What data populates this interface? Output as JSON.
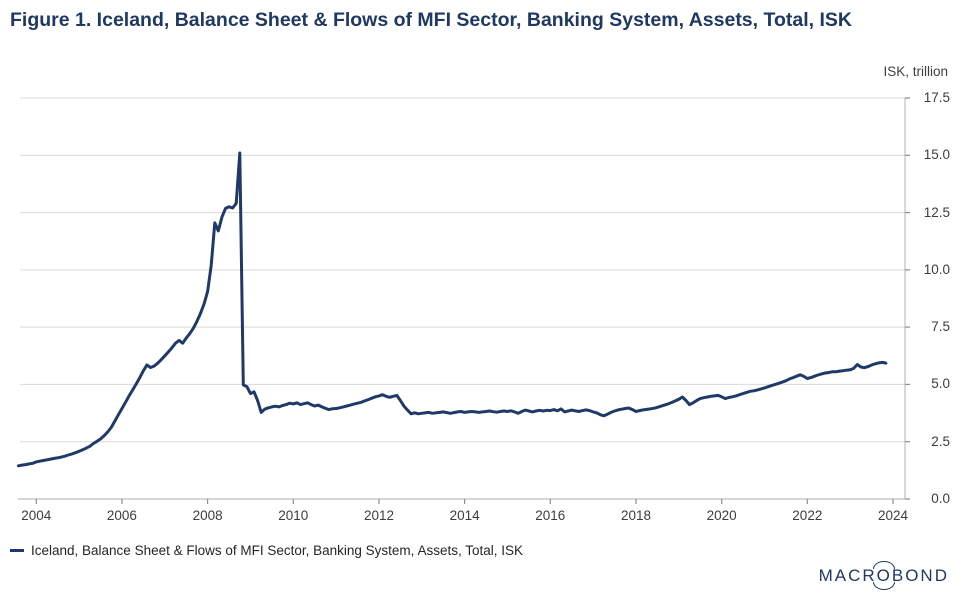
{
  "figure": {
    "title": "Figure 1. Iceland, Balance Sheet & Flows of MFI Sector, Banking System, Assets, Total, ISK",
    "unit_label": "ISK, trillion"
  },
  "legend": {
    "items": [
      {
        "label": "Iceland, Balance Sheet & Flows of MFI Sector, Banking System, Assets, Total, ISK",
        "marker": "line-dash",
        "color": "#1f3a68"
      }
    ]
  },
  "branding": {
    "logo_part1": "MACR",
    "logo_o": "O",
    "logo_part2": "BOND"
  },
  "colors": {
    "accent_navy": "#1f3864",
    "series_line": "#1f3a68",
    "gridline": "#d9d9d9",
    "axis_line": "#bdbdbd",
    "tick_mark": "#8c8c8c",
    "tick_text": "#3d3d3d"
  },
  "chart_data": {
    "type": "line",
    "title": "Figure 1. Iceland, Balance Sheet & Flows of MFI Sector, Banking System, Assets, Total, ISK",
    "ylabel": "ISK, trillion",
    "grid": true,
    "legend_position": "bottom-left",
    "ylim": [
      0,
      17.5
    ],
    "y_tick_labels": [
      "0.0",
      "2.5",
      "5.0",
      "7.5",
      "10.0",
      "12.5",
      "15.0",
      "17.5"
    ],
    "y_tick_values": [
      0,
      2.5,
      5,
      7.5,
      10,
      12.5,
      15,
      17.5
    ],
    "x_tick_years": [
      2004,
      2006,
      2008,
      2010,
      2012,
      2014,
      2016,
      2018,
      2020,
      2022,
      2024
    ],
    "x_range": [
      2003.62,
      2024.28
    ],
    "annotations": {
      "peak_value_trillion": 15.1,
      "peak_date": "2008-10",
      "post_crash_low": 3.6,
      "end_value_trillion": 5.9
    },
    "series": [
      {
        "name": "Iceland, Balance Sheet & Flows of MFI Sector, Banking System, Assets, Total, ISK",
        "color": "#1f3a68",
        "frequency": "monthly",
        "start_year": 2003,
        "start_month": 8,
        "values": [
          1.45,
          1.48,
          1.5,
          1.53,
          1.56,
          1.62,
          1.65,
          1.68,
          1.71,
          1.74,
          1.77,
          1.8,
          1.83,
          1.87,
          1.92,
          1.97,
          2.02,
          2.08,
          2.15,
          2.22,
          2.3,
          2.42,
          2.52,
          2.62,
          2.76,
          2.93,
          3.12,
          3.4,
          3.68,
          3.95,
          4.22,
          4.5,
          4.76,
          5.02,
          5.3,
          5.6,
          5.85,
          5.74,
          5.8,
          5.92,
          6.08,
          6.25,
          6.42,
          6.6,
          6.8,
          6.92,
          6.8,
          7.02,
          7.22,
          7.45,
          7.75,
          8.1,
          8.52,
          9.05,
          10.2,
          12.05,
          11.7,
          12.3,
          12.68,
          12.75,
          12.7,
          12.9,
          15.1,
          4.98,
          4.9,
          4.6,
          4.68,
          4.3,
          3.78,
          3.92,
          3.98,
          4.02,
          4.05,
          4.02,
          4.08,
          4.12,
          4.18,
          4.15,
          4.2,
          4.12,
          4.16,
          4.2,
          4.12,
          4.06,
          4.1,
          4.02,
          3.96,
          3.9,
          3.94,
          3.95,
          3.98,
          4.02,
          4.06,
          4.1,
          4.14,
          4.18,
          4.22,
          4.28,
          4.34,
          4.4,
          4.46,
          4.5,
          4.55,
          4.48,
          4.44,
          4.48,
          4.52,
          4.3,
          4.05,
          3.88,
          3.72,
          3.76,
          3.72,
          3.74,
          3.76,
          3.78,
          3.74,
          3.76,
          3.78,
          3.8,
          3.77,
          3.74,
          3.77,
          3.8,
          3.82,
          3.78,
          3.8,
          3.82,
          3.8,
          3.78,
          3.8,
          3.82,
          3.84,
          3.81,
          3.79,
          3.82,
          3.84,
          3.82,
          3.85,
          3.8,
          3.74,
          3.82,
          3.88,
          3.84,
          3.8,
          3.84,
          3.87,
          3.84,
          3.87,
          3.86,
          3.9,
          3.85,
          3.93,
          3.8,
          3.84,
          3.88,
          3.85,
          3.82,
          3.86,
          3.89,
          3.86,
          3.8,
          3.76,
          3.68,
          3.63,
          3.7,
          3.78,
          3.84,
          3.89,
          3.92,
          3.95,
          3.97,
          3.9,
          3.82,
          3.86,
          3.89,
          3.91,
          3.93,
          3.96,
          4.0,
          4.05,
          4.1,
          4.15,
          4.21,
          4.28,
          4.35,
          4.45,
          4.3,
          4.12,
          4.2,
          4.3,
          4.38,
          4.42,
          4.45,
          4.48,
          4.5,
          4.52,
          4.46,
          4.38,
          4.43,
          4.46,
          4.5,
          4.55,
          4.6,
          4.65,
          4.7,
          4.72,
          4.76,
          4.8,
          4.85,
          4.9,
          4.95,
          5.0,
          5.05,
          5.1,
          5.16,
          5.24,
          5.3,
          5.36,
          5.42,
          5.35,
          5.26,
          5.3,
          5.36,
          5.41,
          5.46,
          5.5,
          5.52,
          5.55,
          5.55,
          5.58,
          5.6,
          5.62,
          5.64,
          5.7,
          5.87,
          5.76,
          5.73,
          5.78,
          5.85,
          5.9,
          5.94,
          5.96,
          5.93
        ]
      }
    ]
  }
}
